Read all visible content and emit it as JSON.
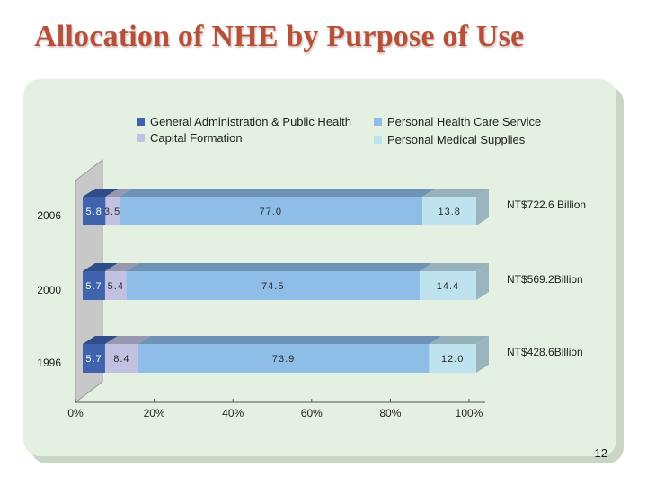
{
  "slide": {
    "title": "Allocation of NHE by Purpose of Use",
    "page_number": "12"
  },
  "chart_data": {
    "type": "bar",
    "orientation": "horizontal",
    "stacked": true,
    "normalized_percent": true,
    "categories": [
      "2006",
      "2000",
      "1996"
    ],
    "series": [
      {
        "name": "General Administration & Public Health",
        "color": "#3f63ad",
        "values": [
          5.8,
          5.7,
          5.7
        ]
      },
      {
        "name": "Capital Formation",
        "color": "#c3c1e2",
        "values": [
          3.5,
          5.4,
          8.4
        ]
      },
      {
        "name": "Personal Health Care Service",
        "color": "#8ebde8",
        "values": [
          77.0,
          74.5,
          73.9
        ]
      },
      {
        "name": "Personal Medical Supplies",
        "color": "#bfe3ee",
        "values": [
          13.8,
          14.4,
          12.0
        ]
      }
    ],
    "value_labels": [
      [
        "5.8",
        "3.5",
        "77.0",
        "13.8"
      ],
      [
        "5.7",
        "5.4",
        "74.5",
        "14.4"
      ],
      [
        "5.7",
        "8.4",
        "73.9",
        "12.0"
      ]
    ],
    "totals": [
      "NT$722.6 Billion",
      "NT$569.2Billion",
      "NT$428.6Billion"
    ],
    "x_ticks": [
      "0%",
      "20%",
      "40%",
      "60%",
      "80%",
      "100%"
    ],
    "xlim": [
      0,
      100
    ],
    "legend_position": "top",
    "grid": false
  }
}
